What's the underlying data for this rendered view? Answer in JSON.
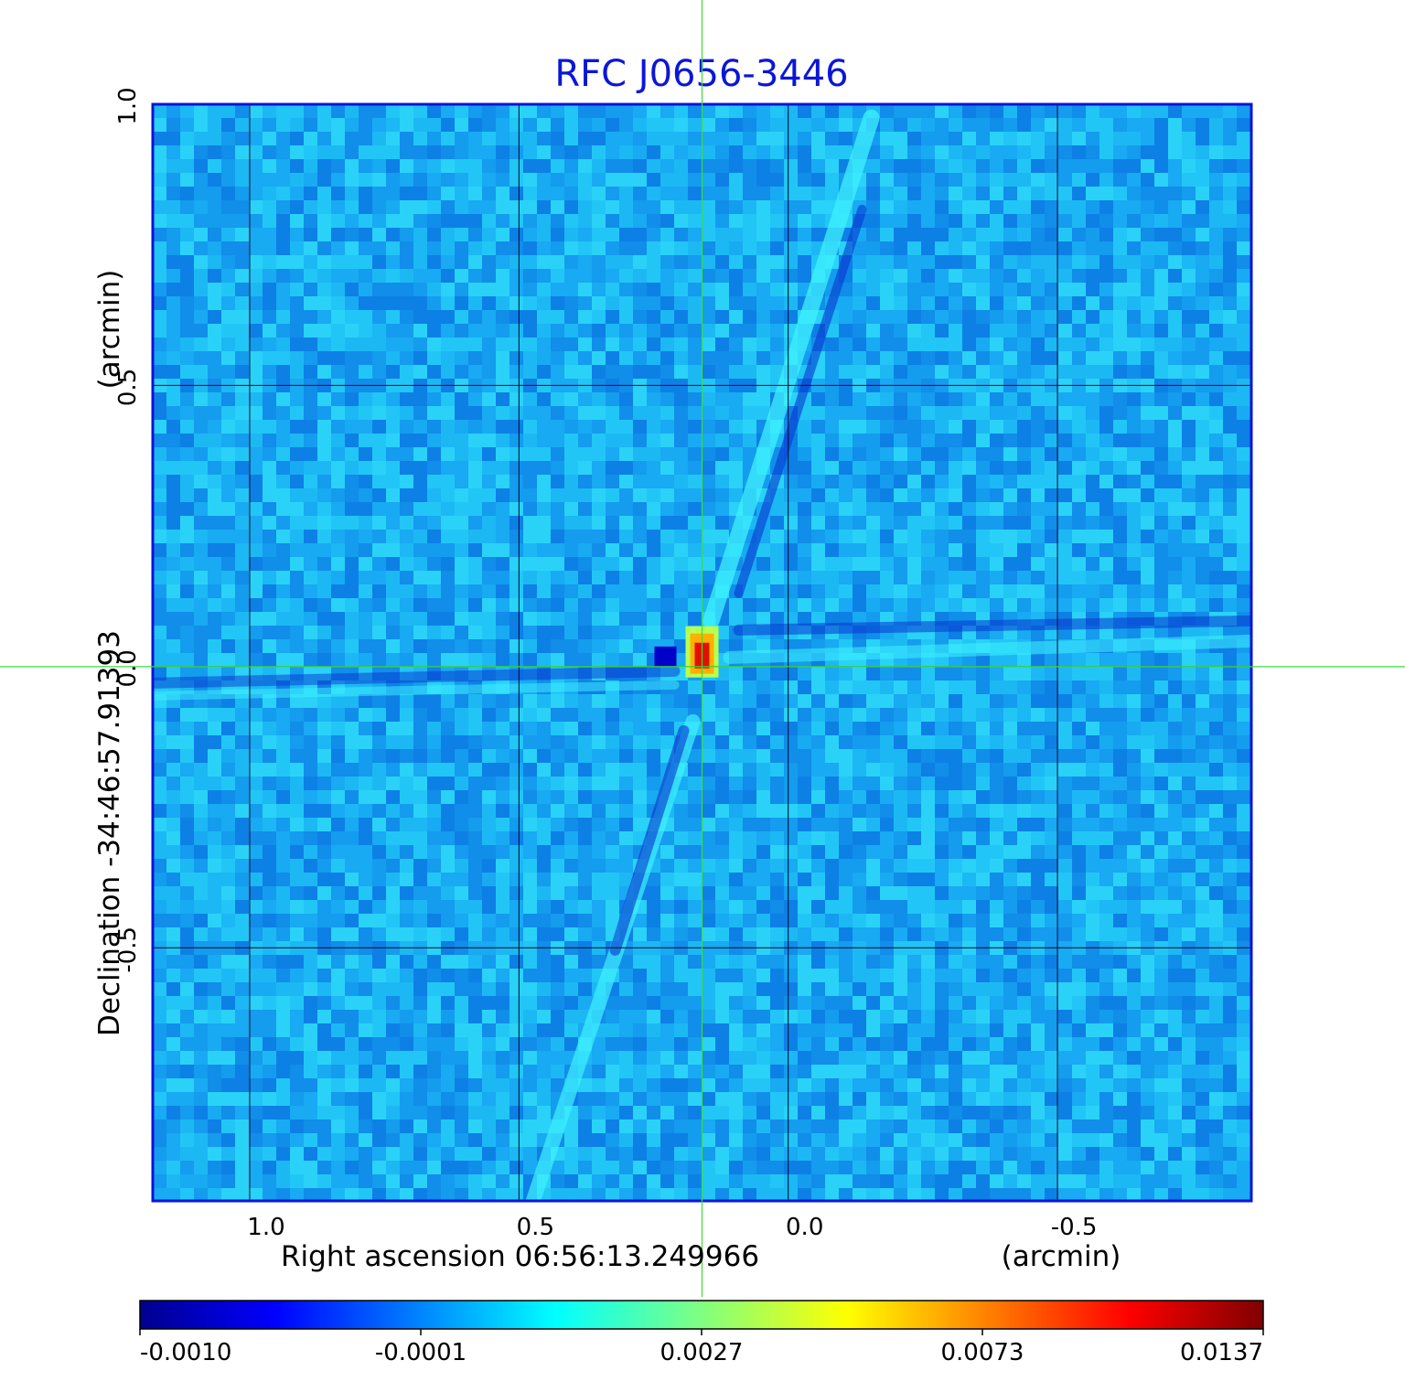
{
  "chart_data": {
    "type": "heatmap",
    "title": "RFC J0656-3446",
    "xlabel": "Right ascension  06:56:13.249966",
    "xunit": "(arcmin)",
    "ylabel": "Declination  -34:46:57.91393",
    "yunit": "(arcmin)",
    "xlim": [
      1.18,
      -0.86
    ],
    "ylim": [
      -0.95,
      1.0
    ],
    "x_ticks": [
      {
        "value": 1.0,
        "label": "1.0"
      },
      {
        "value": 0.5,
        "label": "0.5"
      },
      {
        "value": 0.0,
        "label": "0.0"
      },
      {
        "value": -0.5,
        "label": "-0.5"
      }
    ],
    "y_ticks": [
      {
        "value": 1.0,
        "label": "1.0"
      },
      {
        "value": 0.5,
        "label": "0.5"
      },
      {
        "value": 0.0,
        "label": "0.0"
      },
      {
        "value": -0.5,
        "label": "-0.5"
      }
    ],
    "grid": true,
    "crosshair": {
      "x": 0.16,
      "y": 0.0
    },
    "peak": {
      "x": 0.16,
      "y": 0.01,
      "value": 0.0137
    },
    "colormap": "jet",
    "colorbar": {
      "labels": [
        "-0.0010",
        "-0.0001",
        "0.0027",
        "0.0073",
        "0.0137"
      ]
    },
    "colors": {
      "title": "#0b17d6",
      "frame": "#0a14d8",
      "crosshair": "#3cdc3c",
      "grid": "#0a0a2a"
    }
  }
}
